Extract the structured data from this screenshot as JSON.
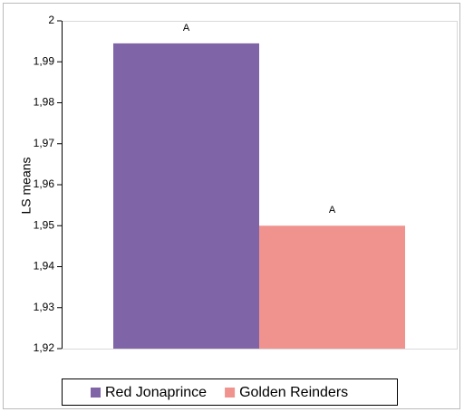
{
  "chart_data": {
    "type": "bar",
    "y_label": "LS means",
    "categories": [
      null
    ],
    "series": [
      {
        "name": "Red Jonaprince",
        "color": "#8064a8",
        "values": [
          1.9945
        ],
        "annotations": [
          "A"
        ]
      },
      {
        "name": "Golden Reinders",
        "color": "#f0938f",
        "values": [
          1.95
        ],
        "annotations": [
          "A"
        ]
      }
    ],
    "ylim": [
      1.92,
      2
    ],
    "yticks": [
      {
        "value": 1.92,
        "label": "1,92"
      },
      {
        "value": 1.93,
        "label": "1,93"
      },
      {
        "value": 1.94,
        "label": "1,94"
      },
      {
        "value": 1.95,
        "label": "1,95"
      },
      {
        "value": 1.96,
        "label": "1,96"
      },
      {
        "value": 1.97,
        "label": "1,97"
      },
      {
        "value": 1.98,
        "label": "1,98"
      },
      {
        "value": 1.99,
        "label": "1,99"
      },
      2
    ],
    "legend": "bottom"
  }
}
